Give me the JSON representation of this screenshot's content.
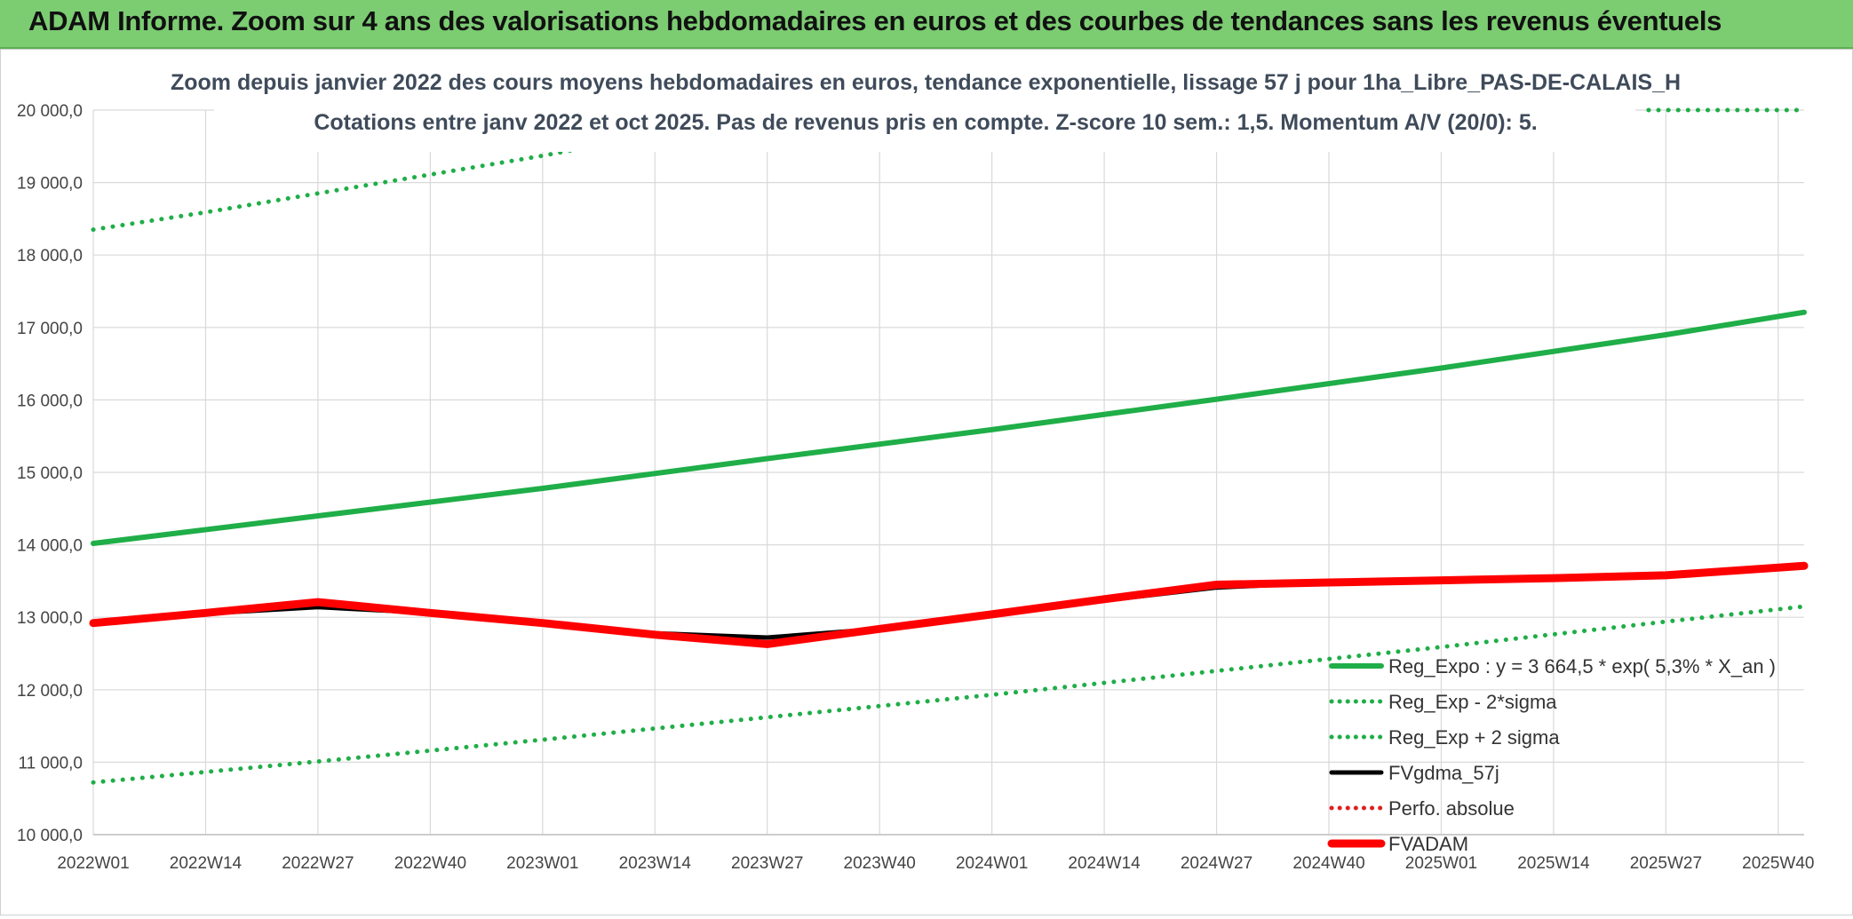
{
  "banner": {
    "title": "ADAM Informe. Zoom sur 4 ans des valorisations hebdomadaires en euros et des courbes de tendances sans les revenus éventuels"
  },
  "colors": {
    "banner_bg": "#7ccc72",
    "reg_expo": "#1fae48",
    "band": "#1fae48",
    "fvgdma": "#000000",
    "perfo": "#e02020",
    "fvadam": "#ff0000"
  },
  "chart_data": {
    "type": "line",
    "title": "Zoom depuis janvier 2022 des cours moyens hebdomadaires en euros, tendance exponentielle, lissage 57 j pour 1ha_Libre_PAS-DE-CALAIS_H",
    "subtitle": "Cotations entre janv 2022 et oct 2025. Pas de revenus pris en compte. Z-score 10 sem.: 1,5. Momentum A/V (20/0): 5.",
    "x_tick_labels": [
      "2022W01",
      "2022W14",
      "2022W27",
      "2022W40",
      "2023W01",
      "2023W14",
      "2023W27",
      "2023W40",
      "2024W01",
      "2024W14",
      "2024W27",
      "2024W40",
      "2025W01",
      "2025W14",
      "2025W27",
      "2025W40"
    ],
    "y_tick_labels": [
      "10 000,0",
      "11 000,0",
      "12 000,0",
      "13 000,0",
      "14 000,0",
      "15 000,0",
      "16 000,0",
      "17 000,0",
      "18 000,0",
      "19 000,0",
      "20 000,0"
    ],
    "ylim": [
      10000,
      20000
    ],
    "grid": true,
    "legend_position": "right",
    "series": [
      {
        "name": "Reg_Expo : y = 3 664,5 * exp( 5,3% * X_an )",
        "style": "solid-thick",
        "color": "#1fae48",
        "points": [
          [
            "2022W01",
            14020
          ],
          [
            "2022W27",
            14400
          ],
          [
            "2023W01",
            14780
          ],
          [
            "2023W27",
            15190
          ],
          [
            "2024W01",
            15590
          ],
          [
            "2024W27",
            16010
          ],
          [
            "2025W01",
            16440
          ],
          [
            "2025W27",
            16900
          ],
          [
            "2025W43",
            17210
          ]
        ]
      },
      {
        "name": "Reg_Exp - 2*sigma",
        "style": "dotted",
        "color": "#1fae48",
        "points": [
          [
            "2022W01",
            10720
          ],
          [
            "2022W27",
            11010
          ],
          [
            "2023W01",
            11310
          ],
          [
            "2023W27",
            11620
          ],
          [
            "2024W01",
            11930
          ],
          [
            "2024W27",
            12260
          ],
          [
            "2025W01",
            12590
          ],
          [
            "2025W27",
            12940
          ],
          [
            "2025W43",
            13150
          ]
        ]
      },
      {
        "name": "Reg_Exp + 2 sigma",
        "style": "dotted",
        "color": "#1fae48",
        "points": [
          [
            "2022W01",
            18350
          ],
          [
            "2022W14",
            18590
          ],
          [
            "2022W27",
            18850
          ],
          [
            "2022W40",
            19110
          ],
          [
            "2023W01",
            19370
          ],
          [
            "2023W09",
            19550
          ]
        ],
        "points_right": [
          [
            "2025W25",
            20000
          ],
          [
            "2025W43",
            20000
          ]
        ]
      },
      {
        "name": "FVgdma_57j",
        "style": "solid",
        "color": "#000000",
        "points": [
          [
            "2022W01",
            12930
          ],
          [
            "2022W14",
            13050
          ],
          [
            "2022W27",
            13140
          ],
          [
            "2022W40",
            13060
          ],
          [
            "2023W01",
            12920
          ],
          [
            "2023W14",
            12780
          ],
          [
            "2023W27",
            12720
          ],
          [
            "2023W40",
            12840
          ],
          [
            "2024W01",
            13030
          ],
          [
            "2024W14",
            13230
          ],
          [
            "2024W27",
            13410
          ],
          [
            "2024W40",
            13480
          ],
          [
            "2025W01",
            13500
          ],
          [
            "2025W14",
            13530
          ],
          [
            "2025W27",
            13570
          ],
          [
            "2025W43",
            13700
          ]
        ]
      },
      {
        "name": "Perfo. absolue",
        "style": "dotted",
        "color": "#e02020",
        "points": []
      },
      {
        "name": "FVADAM",
        "style": "solid-thick",
        "color": "#ff0000",
        "points": [
          [
            "2022W01",
            12920
          ],
          [
            "2022W14",
            13060
          ],
          [
            "2022W27",
            13210
          ],
          [
            "2022W40",
            13060
          ],
          [
            "2023W01",
            12920
          ],
          [
            "2023W14",
            12760
          ],
          [
            "2023W27",
            12630
          ],
          [
            "2023W40",
            12840
          ],
          [
            "2024W01",
            13040
          ],
          [
            "2024W14",
            13250
          ],
          [
            "2024W27",
            13450
          ],
          [
            "2024W40",
            13480
          ],
          [
            "2025W01",
            13510
          ],
          [
            "2025W14",
            13540
          ],
          [
            "2025W27",
            13580
          ],
          [
            "2025W43",
            13710
          ]
        ]
      }
    ]
  }
}
